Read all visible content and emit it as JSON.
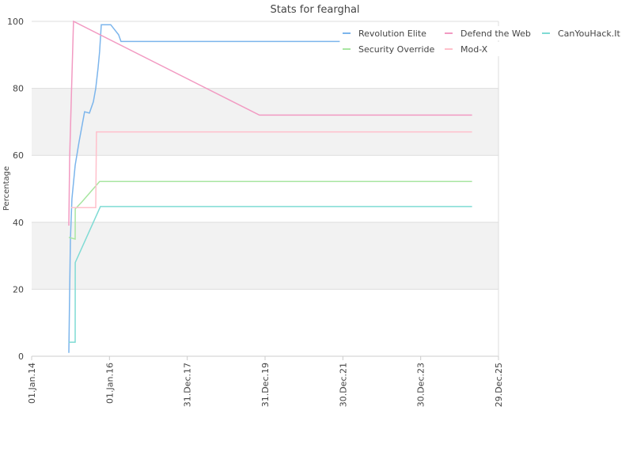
{
  "chart_data": {
    "type": "line",
    "title": "Stats for fearghal",
    "y_label": "Percentage",
    "xlim": [
      "2014-01-01",
      "2025-12-29"
    ],
    "xticks": [
      {
        "value": "2014-01-01",
        "label": "01.Jan.14"
      },
      {
        "value": "2016-01-01",
        "label": "01.Jan.16"
      },
      {
        "value": "2017-12-31",
        "label": "31.Dec.17"
      },
      {
        "value": "2019-12-31",
        "label": "31.Dec.19"
      },
      {
        "value": "2021-12-30",
        "label": "30.Dec.21"
      },
      {
        "value": "2023-12-30",
        "label": "30.Dec.23"
      },
      {
        "value": "2025-12-29",
        "label": "29.Dec.25"
      }
    ],
    "ylim": [
      0,
      100
    ],
    "yticks": [
      0,
      20,
      40,
      60,
      80,
      100
    ],
    "grid": true,
    "alternate_bands": true,
    "legend": "top-right",
    "series": [
      {
        "name": "Revolution Elite",
        "color": "#7cb5ec",
        "x": [
          "2014-12-16",
          "2014-12-23",
          "2014-12-31",
          "2015-01-14",
          "2015-02-13",
          "2015-03-22",
          "2015-05-13",
          "2015-06-27",
          "2015-08-03",
          "2015-08-25",
          "2015-09-16",
          "2015-10-01",
          "2015-10-16",
          "2016-01-13",
          "2016-03-27",
          "2016-04-18",
          "2021-12-01"
        ],
        "values": [
          1,
          19,
          35,
          47,
          57,
          64,
          73,
          72.6,
          76,
          80,
          86,
          91,
          99,
          99,
          96,
          94,
          94
        ]
      },
      {
        "name": "Defend the Web",
        "color": "#f29ac2",
        "x": [
          "2014-12-16",
          "2014-12-23",
          "2015-01-07",
          "2015-01-29",
          "2019-11-08",
          "2025-04-25"
        ],
        "values": [
          39,
          59,
          76,
          100,
          72,
          72
        ]
      },
      {
        "name": "CanYouHack.It",
        "color": "#7fdbd4",
        "x": [
          "2014-12-16",
          "2015-02-13",
          "2015-02-14",
          "2015-10-08",
          "2025-04-25"
        ],
        "values": [
          4.2,
          4.2,
          28,
          44.7,
          44.7
        ]
      },
      {
        "name": "Security Override",
        "color": "#a8e6a1",
        "x": [
          "2014-12-16",
          "2015-02-13",
          "2015-02-14",
          "2015-04-15",
          "2015-10-01",
          "2025-04-25"
        ],
        "values": [
          35.5,
          35,
          44,
          46,
          52.2,
          52.2
        ]
      },
      {
        "name": "Mod-X",
        "color": "#ffc0cb",
        "x": [
          "2015-01-07",
          "2015-08-25",
          "2015-09-01",
          "2025-04-25"
        ],
        "values": [
          44.4,
          44.4,
          67,
          67
        ]
      }
    ]
  }
}
